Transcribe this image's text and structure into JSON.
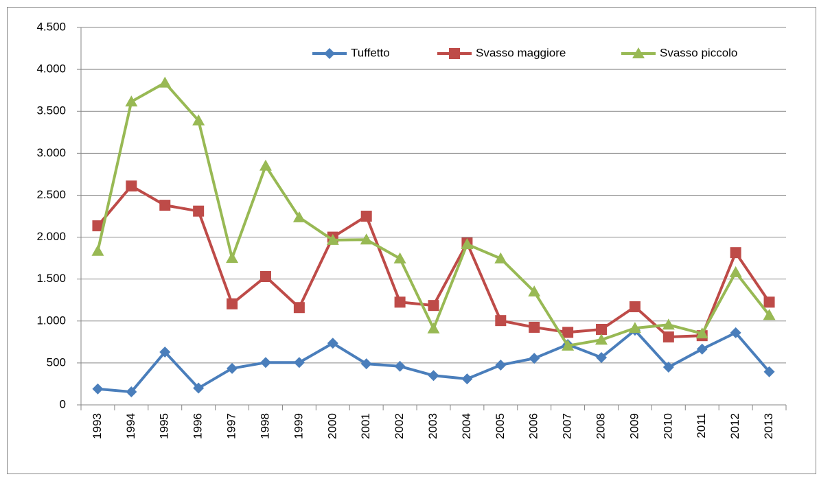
{
  "chart_data": {
    "type": "line",
    "categories": [
      "1993",
      "1994",
      "1995",
      "1996",
      "1997",
      "1998",
      "1999",
      "2000",
      "2001",
      "2002",
      "2003",
      "2004",
      "2005",
      "2006",
      "2007",
      "2008",
      "2009",
      "2010",
      "2011",
      "2012",
      "2013"
    ],
    "series": [
      {
        "name": "Tuffetto",
        "color": "#4a7ebb",
        "marker": "diamond",
        "values": [
          190,
          155,
          630,
          200,
          435,
          505,
          505,
          735,
          490,
          460,
          350,
          310,
          475,
          555,
          720,
          565,
          890,
          450,
          665,
          860,
          395
        ]
      },
      {
        "name": "Svasso maggiore",
        "color": "#be4b48",
        "marker": "square",
        "values": [
          2135,
          2610,
          2380,
          2310,
          1205,
          1530,
          1160,
          2000,
          2250,
          1225,
          1185,
          1930,
          1005,
          925,
          865,
          900,
          1170,
          810,
          825,
          1815,
          1225
        ]
      },
      {
        "name": "Svasso piccolo",
        "color": "#98b954",
        "marker": "triangle",
        "values": [
          1835,
          3615,
          3840,
          3390,
          1750,
          2850,
          2235,
          1965,
          1970,
          1745,
          910,
          1915,
          1745,
          1350,
          705,
          775,
          915,
          955,
          850,
          1580,
          1070
        ]
      }
    ],
    "ylim": [
      0,
      4500
    ],
    "yticks": [
      0,
      500,
      {
        "value": 1000,
        "label": "1.000"
      },
      {
        "value": 1500,
        "label": "1.500"
      },
      {
        "value": 2000,
        "label": "2.000"
      },
      {
        "value": 2500,
        "label": "2.500"
      },
      {
        "value": 3000,
        "label": "3.000"
      },
      {
        "value": 3500,
        "label": "3.500"
      },
      {
        "value": 4000,
        "label": "4.000"
      },
      {
        "value": 4500,
        "label": "4.500"
      }
    ],
    "grid": true,
    "legend": "top"
  }
}
